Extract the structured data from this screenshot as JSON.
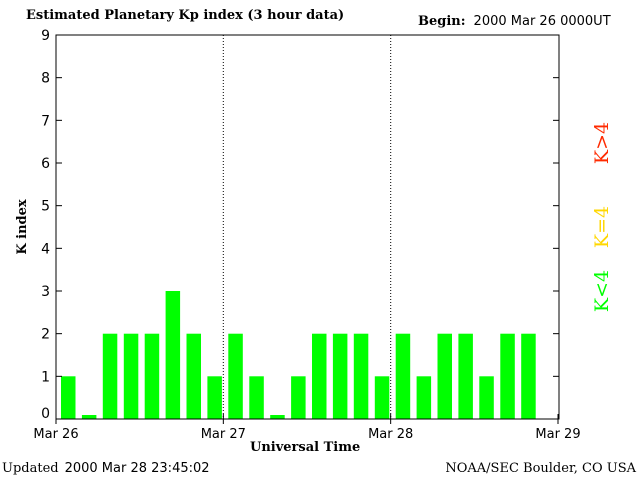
{
  "header": {
    "title": "Estimated Planetary Kp index (3 hour data)",
    "begin_label": "Begin:",
    "begin_value": "2000 Mar 26 0000UT"
  },
  "footer": {
    "updated_label": "Updated",
    "updated_value": "2000 Mar 28 23:45:02",
    "credit": "NOAA/SEC Boulder, CO USA"
  },
  "legend": [
    {
      "text": "K>4",
      "color": "#ff2a00"
    },
    {
      "text": "K=4",
      "color": "#ffd700"
    },
    {
      "text": "K<4",
      "color": "#00ff00"
    }
  ],
  "chart_data": {
    "type": "bar",
    "xlabel": "Universal Time",
    "ylabel": "K index",
    "ylim": [
      0,
      9
    ],
    "yticks": [
      "0",
      "1",
      "2",
      "3",
      "4",
      "5",
      "6",
      "7",
      "8",
      "9"
    ],
    "xticks": [
      "Mar 26",
      "Mar 27",
      "Mar 28",
      "Mar 29"
    ],
    "bar_color": "#00ff00",
    "values": [
      1,
      0,
      2,
      2,
      2,
      3,
      2,
      1,
      2,
      1,
      0,
      1,
      2,
      2,
      2,
      1,
      2,
      1,
      2,
      2,
      1,
      2,
      2
    ]
  }
}
